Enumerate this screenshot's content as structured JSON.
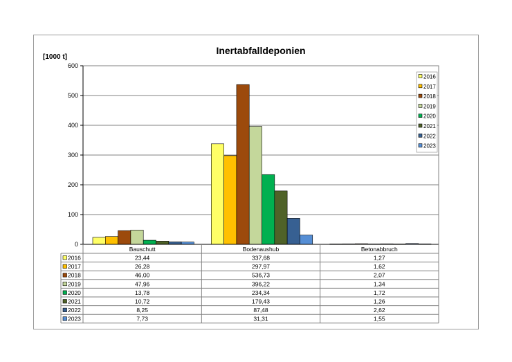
{
  "chart_data": {
    "type": "bar",
    "title": "Inertabfalldeponien",
    "ylabel": "[1000 t]",
    "xlabel": "",
    "ylim": [
      0,
      600
    ],
    "yticks": [
      0,
      100,
      200,
      300,
      400,
      500,
      600
    ],
    "grid": true,
    "legend_position": "top-right",
    "categories": [
      "Bauschutt",
      "Bodenaushub",
      "Betonabbruch"
    ],
    "series": [
      {
        "name": "2016",
        "color": "#ffff66",
        "values": [
          23.44,
          337.68,
          1.27
        ],
        "labels": [
          "23,44",
          "337,68",
          "1,27"
        ]
      },
      {
        "name": "2017",
        "color": "#ffc000",
        "values": [
          26.28,
          297.97,
          1.62
        ],
        "labels": [
          "26,28",
          "297,97",
          "1,62"
        ]
      },
      {
        "name": "2018",
        "color": "#9c4a0c",
        "values": [
          46.0,
          536.73,
          2.07
        ],
        "labels": [
          "46,00",
          "536,73",
          "2,07"
        ]
      },
      {
        "name": "2019",
        "color": "#c4d79b",
        "values": [
          47.96,
          396.22,
          1.34
        ],
        "labels": [
          "47,96",
          "396,22",
          "1,34"
        ]
      },
      {
        "name": "2020",
        "color": "#00b050",
        "values": [
          13.78,
          234.34,
          1.72
        ],
        "labels": [
          "13,78",
          "234,34",
          "1,72"
        ]
      },
      {
        "name": "2021",
        "color": "#4f6228",
        "values": [
          10.72,
          179.43,
          1.26
        ],
        "labels": [
          "10,72",
          "179,43",
          "1,26"
        ]
      },
      {
        "name": "2022",
        "color": "#376092",
        "values": [
          8.25,
          87.48,
          2.62
        ],
        "labels": [
          "8,25",
          "87,48",
          "2,62"
        ]
      },
      {
        "name": "2023",
        "color": "#558ed5",
        "values": [
          7.73,
          31.31,
          1.55
        ],
        "labels": [
          "7,73",
          "31,31",
          "1,55"
        ]
      }
    ]
  }
}
